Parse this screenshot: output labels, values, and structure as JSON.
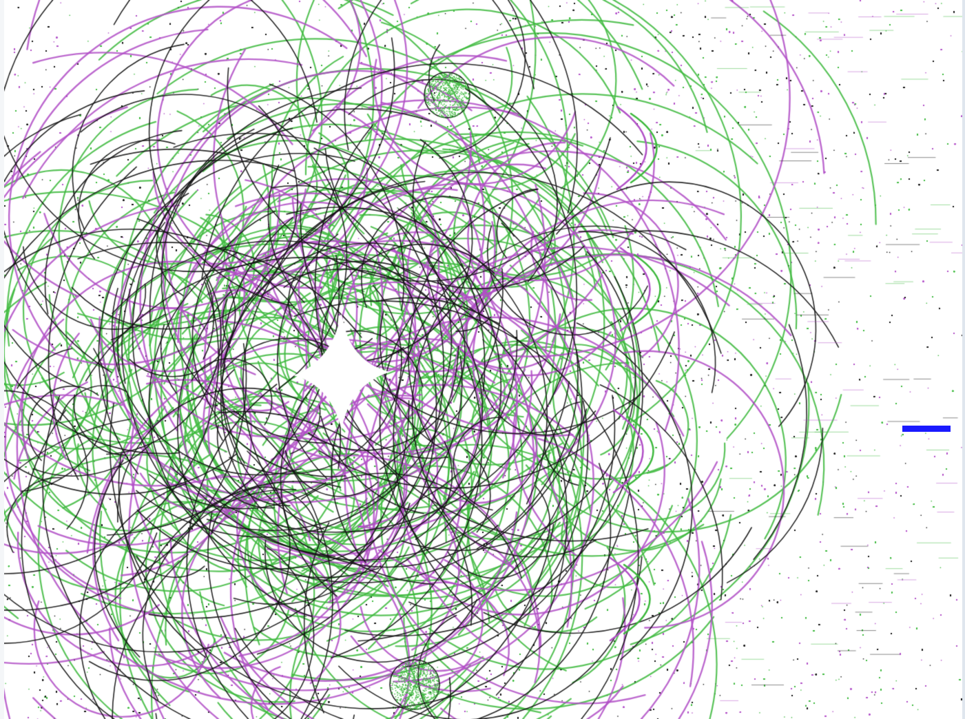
{
  "artwork": {
    "kind": "overlapping circle arcs with scattered dots",
    "colors": {
      "background": "#ffffff",
      "green": "#3cb83c",
      "magenta": "#b04ec6",
      "black": "#111111"
    }
  },
  "marker": {
    "color": "#1a1aff"
  }
}
